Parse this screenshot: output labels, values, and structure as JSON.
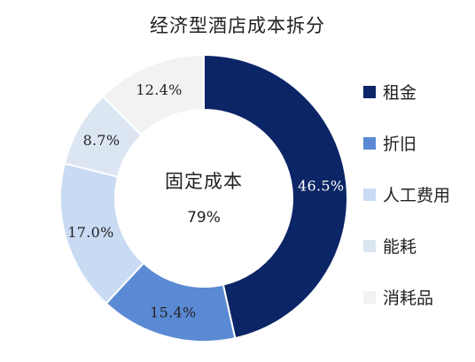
{
  "chart_data": {
    "type": "pie",
    "title": "经济型酒店成本拆分",
    "donut": true,
    "center_label": {
      "title": "固定成本",
      "value": "79%"
    },
    "legend_position": "right",
    "start_angle_deg": 0,
    "direction": "clockwise",
    "slices": [
      {
        "name": "租金",
        "value": 46.5,
        "label": "46.5%",
        "color": "#0b2566",
        "label_color": "#ffffff"
      },
      {
        "name": "折旧",
        "value": 15.4,
        "label": "15.4%",
        "color": "#5b8ad4",
        "label_color": "#222222"
      },
      {
        "name": "人工费用",
        "value": 17.0,
        "label": "17.0%",
        "color": "#c9daf3",
        "label_color": "#222222"
      },
      {
        "name": "能耗",
        "value": 8.7,
        "label": "8.7%",
        "color": "#dce6f2",
        "label_color": "#222222"
      },
      {
        "name": "消耗品",
        "value": 12.4,
        "label": "12.4%",
        "color": "#f2f2f2",
        "label_color": "#222222"
      }
    ]
  }
}
